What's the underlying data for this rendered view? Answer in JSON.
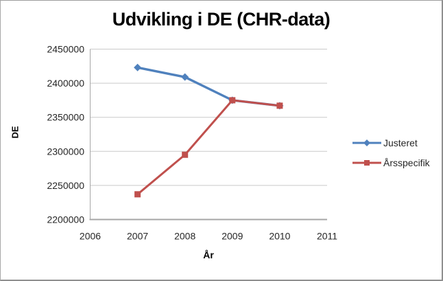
{
  "window": {
    "background": "#ffffff",
    "border_color": "#9c9c9c"
  },
  "chart_data": {
    "type": "line",
    "title": "Udvikling i DE (CHR-data)",
    "xlabel": "År",
    "ylabel": "DE",
    "x": [
      2007,
      2008,
      2009,
      2010
    ],
    "series": [
      {
        "name": "Justeret",
        "color": "#4F81BD",
        "marker": "diamond",
        "values": [
          2423000,
          2409000,
          2375000,
          2367000
        ]
      },
      {
        "name": "Årsspecifik",
        "color": "#C0504D",
        "marker": "square",
        "values": [
          2237000,
          2295000,
          2375000,
          2367000
        ]
      }
    ],
    "xlim": [
      2006,
      2011
    ],
    "ylim": [
      2200000,
      2450000
    ],
    "xticks": [
      2006,
      2007,
      2008,
      2009,
      2010,
      2011
    ],
    "yticks": [
      2200000,
      2250000,
      2300000,
      2350000,
      2400000,
      2450000
    ],
    "grid": "horizontal",
    "legend_position": "right",
    "gridline_color": "#C9C9C9",
    "axis_color": "#A6A6A6",
    "tick_text_color": "#262626"
  }
}
